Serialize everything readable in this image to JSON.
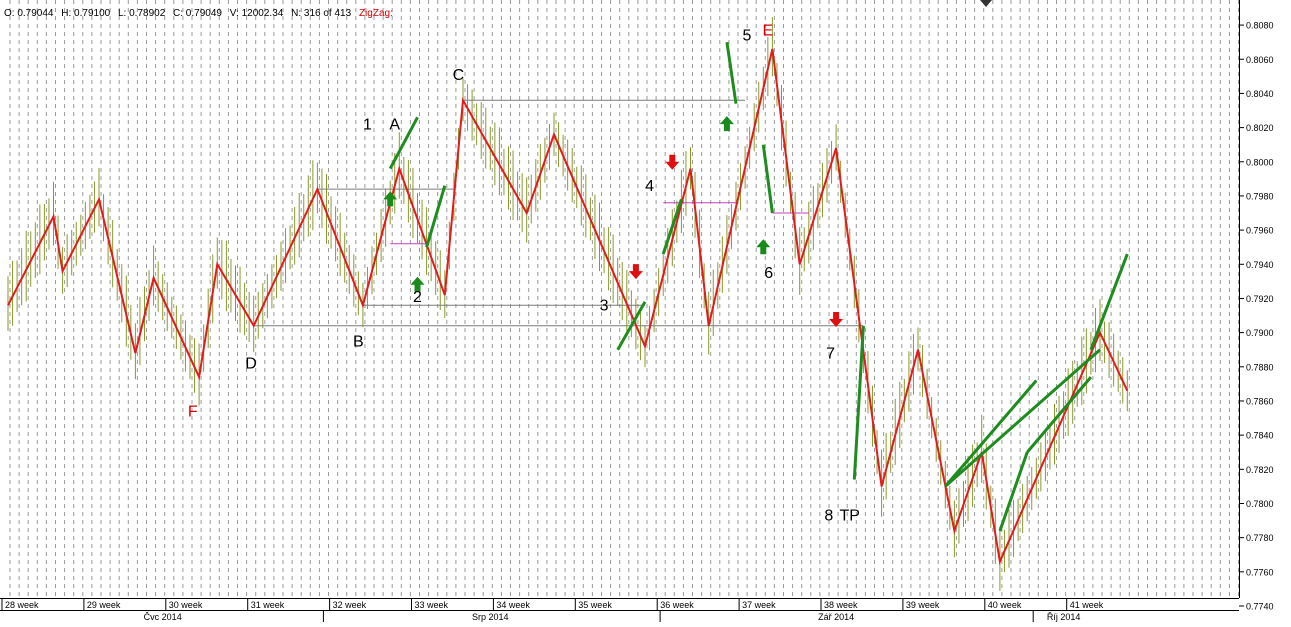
{
  "info_bar": {
    "open": "O: 0.79044",
    "high": "H: 0.79100",
    "low": "L: 0.78902",
    "close": "C: 0.79049",
    "volume": "V: 12002.34",
    "count": "N: 316 of 413",
    "indicator": "ZigZag:"
  },
  "colors": {
    "zigzag": "#e21b1b",
    "trend": "#1e8c1e",
    "candles": "#8a9a2a",
    "level": "#7a7a7a",
    "midline": "#c040c0",
    "label_red": "#d40000",
    "arrow_up": "#1a8a1a",
    "arrow_down": "#e01010",
    "grid": "#9a9a9a"
  },
  "chart_data": {
    "type": "line",
    "x_unit": "trading-bar index (0–123)",
    "ylim": [
      0.774,
      0.809
    ],
    "y_ticks": [
      "0.8080",
      "0.8060",
      "0.8040",
      "0.8020",
      "0.8000",
      "0.7980",
      "0.7960",
      "0.7940",
      "0.7920",
      "0.7900",
      "0.7880",
      "0.7860",
      "0.7840",
      "0.7820",
      "0.7800",
      "0.7780",
      "0.7760",
      "0.7740"
    ],
    "week_labels": [
      {
        "x": 0,
        "label": "28 week"
      },
      {
        "x": 9,
        "label": "29 week"
      },
      {
        "x": 18,
        "label": "30 week"
      },
      {
        "x": 27,
        "label": "31 week"
      },
      {
        "x": 36,
        "label": "32 week"
      },
      {
        "x": 45,
        "label": "33 week"
      },
      {
        "x": 54,
        "label": "34 week"
      },
      {
        "x": 63,
        "label": "35 week"
      },
      {
        "x": 72,
        "label": "36 week"
      },
      {
        "x": 81,
        "label": "37 week"
      },
      {
        "x": 90,
        "label": "38 week"
      },
      {
        "x": 99,
        "label": "39 week"
      },
      {
        "x": 108,
        "label": "40 week"
      },
      {
        "x": 117,
        "label": "41 week"
      }
    ],
    "month_labels": [
      {
        "x": 17,
        "label": "Čvc 2014"
      },
      {
        "x": 53,
        "label": "Srp 2014"
      },
      {
        "x": 91,
        "label": "Zář 2014"
      },
      {
        "x": 116,
        "label": "Říj 2014"
      }
    ],
    "month_separators": [
      34,
      71,
      112
    ],
    "zigzag": [
      [
        0,
        0.7916
      ],
      [
        5,
        0.7968
      ],
      [
        6,
        0.7936
      ],
      [
        10,
        0.7978
      ],
      [
        14,
        0.7888
      ],
      [
        16,
        0.7932
      ],
      [
        21,
        0.7874
      ],
      [
        23,
        0.794
      ],
      [
        27,
        0.7904
      ],
      [
        34,
        0.7984
      ],
      [
        39,
        0.7916
      ],
      [
        43,
        0.7996
      ],
      [
        48,
        0.7922
      ],
      [
        50,
        0.8036
      ],
      [
        57,
        0.797
      ],
      [
        60,
        0.8016
      ],
      [
        70,
        0.7892
      ],
      [
        75,
        0.7996
      ],
      [
        77,
        0.7904
      ],
      [
        84,
        0.8066
      ],
      [
        87,
        0.794
      ],
      [
        91,
        0.8008
      ],
      [
        96,
        0.781
      ],
      [
        100,
        0.789
      ],
      [
        104,
        0.7784
      ],
      [
        107,
        0.783
      ],
      [
        109,
        0.7766
      ],
      [
        120,
        0.79
      ],
      [
        123,
        0.7866
      ]
    ],
    "trend_lines": [
      [
        [
          42,
          0.7996
        ],
        [
          45,
          0.8026
        ]
      ],
      [
        [
          46,
          0.795
        ],
        [
          48,
          0.7986
        ]
      ],
      [
        [
          67,
          0.789
        ],
        [
          70,
          0.7918
        ]
      ],
      [
        [
          72,
          0.7946
        ],
        [
          74,
          0.7978
        ]
      ],
      [
        [
          79,
          0.807
        ],
        [
          80,
          0.8034
        ]
      ],
      [
        [
          83,
          0.801
        ],
        [
          84,
          0.797
        ]
      ],
      [
        [
          93,
          0.7814
        ],
        [
          94,
          0.7904
        ]
      ],
      [
        [
          103,
          0.781
        ],
        [
          113,
          0.7872
        ]
      ],
      [
        [
          103,
          0.781
        ],
        [
          120,
          0.789
        ]
      ],
      [
        [
          109,
          0.7784
        ],
        [
          112,
          0.783
        ]
      ],
      [
        [
          112,
          0.783
        ],
        [
          119,
          0.7874
        ]
      ],
      [
        [
          119,
          0.789
        ],
        [
          123,
          0.7946
        ]
      ]
    ],
    "level_lines": [
      [
        [
          34,
          0.7984
        ],
        [
          49,
          0.7984
        ]
      ],
      [
        [
          50,
          0.8036
        ],
        [
          81,
          0.8036
        ]
      ],
      [
        [
          39,
          0.7916
        ],
        [
          70,
          0.7916
        ]
      ],
      [
        [
          27,
          0.7904
        ],
        [
          94,
          0.7904
        ]
      ]
    ],
    "midlines": [
      [
        [
          42,
          0.7952
        ],
        [
          46,
          0.7952
        ]
      ],
      [
        [
          72,
          0.7976
        ],
        [
          80,
          0.7976
        ]
      ],
      [
        [
          84,
          0.797
        ],
        [
          88,
          0.797
        ]
      ]
    ],
    "arrows": [
      {
        "x": 42,
        "y": 0.7978,
        "dir": "up"
      },
      {
        "x": 45,
        "y": 0.7928,
        "dir": "up"
      },
      {
        "x": 79,
        "y": 0.8022,
        "dir": "up"
      },
      {
        "x": 83,
        "y": 0.795,
        "dir": "up"
      },
      {
        "x": 73,
        "y": 0.8,
        "dir": "down"
      },
      {
        "x": 69,
        "y": 0.7936,
        "dir": "down"
      },
      {
        "x": 91,
        "y": 0.7908,
        "dir": "down"
      }
    ],
    "labels": [
      {
        "x": 39.5,
        "y": 0.8019,
        "text": "1",
        "color": "black"
      },
      {
        "x": 42.5,
        "y": 0.8019,
        "text": "A",
        "color": "black"
      },
      {
        "x": 45,
        "y": 0.7918,
        "text": "2",
        "color": "black"
      },
      {
        "x": 49.5,
        "y": 0.8048,
        "text": "C",
        "color": "black"
      },
      {
        "x": 65.5,
        "y": 0.7913,
        "text": "3",
        "color": "black"
      },
      {
        "x": 70.5,
        "y": 0.7983,
        "text": "4",
        "color": "black"
      },
      {
        "x": 81.2,
        "y": 0.8071,
        "text": "5",
        "color": "black"
      },
      {
        "x": 83.5,
        "y": 0.8074,
        "text": "E",
        "color": "red"
      },
      {
        "x": 83.6,
        "y": 0.7932,
        "text": "6",
        "color": "black"
      },
      {
        "x": 90.4,
        "y": 0.7885,
        "text": "7",
        "color": "black"
      },
      {
        "x": 90.2,
        "y": 0.779,
        "text": "8",
        "color": "black"
      },
      {
        "x": 92.5,
        "y": 0.779,
        "text": "TP",
        "color": "black"
      },
      {
        "x": 38.5,
        "y": 0.7892,
        "text": "B",
        "color": "black"
      },
      {
        "x": 26.7,
        "y": 0.7879,
        "text": "D",
        "color": "black"
      },
      {
        "x": 20.3,
        "y": 0.7851,
        "text": "F",
        "color": "red"
      }
    ]
  }
}
